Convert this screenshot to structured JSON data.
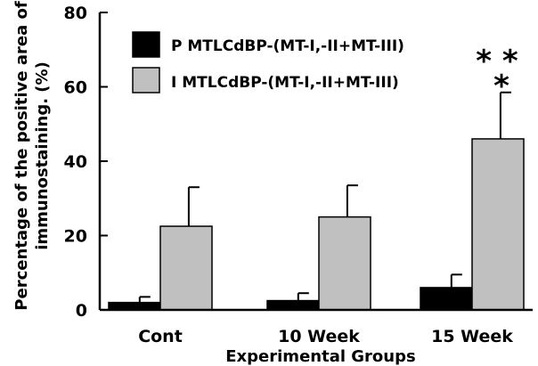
{
  "chart_data": {
    "type": "bar",
    "xlabel": "Experimental Groups",
    "ylabel_lines": [
      "Percentage of the positive area of",
      "immunostaining. (%)"
    ],
    "ylim": [
      0,
      80
    ],
    "yticks": [
      0,
      20,
      40,
      60,
      80
    ],
    "categories": [
      "Cont",
      "10 Week",
      "15 Week"
    ],
    "series": [
      {
        "name": "P MTLCdBP-(MT-I,-II+MT-III)",
        "color": "#000000",
        "values": [
          2,
          2.5,
          6
        ],
        "errors": [
          1.5,
          2,
          3.5
        ]
      },
      {
        "name": "I MTLCdBP-(MT-I,-II+MT-III)",
        "color": "#c0c0c0",
        "values": [
          22.5,
          25,
          46
        ],
        "errors": [
          10.5,
          8.5,
          12.5
        ]
      }
    ],
    "legend_position": "top-left",
    "annotations": [
      {
        "text": "* *",
        "category": "15 Week"
      },
      {
        "text": "*",
        "category": "15 Week"
      }
    ]
  }
}
